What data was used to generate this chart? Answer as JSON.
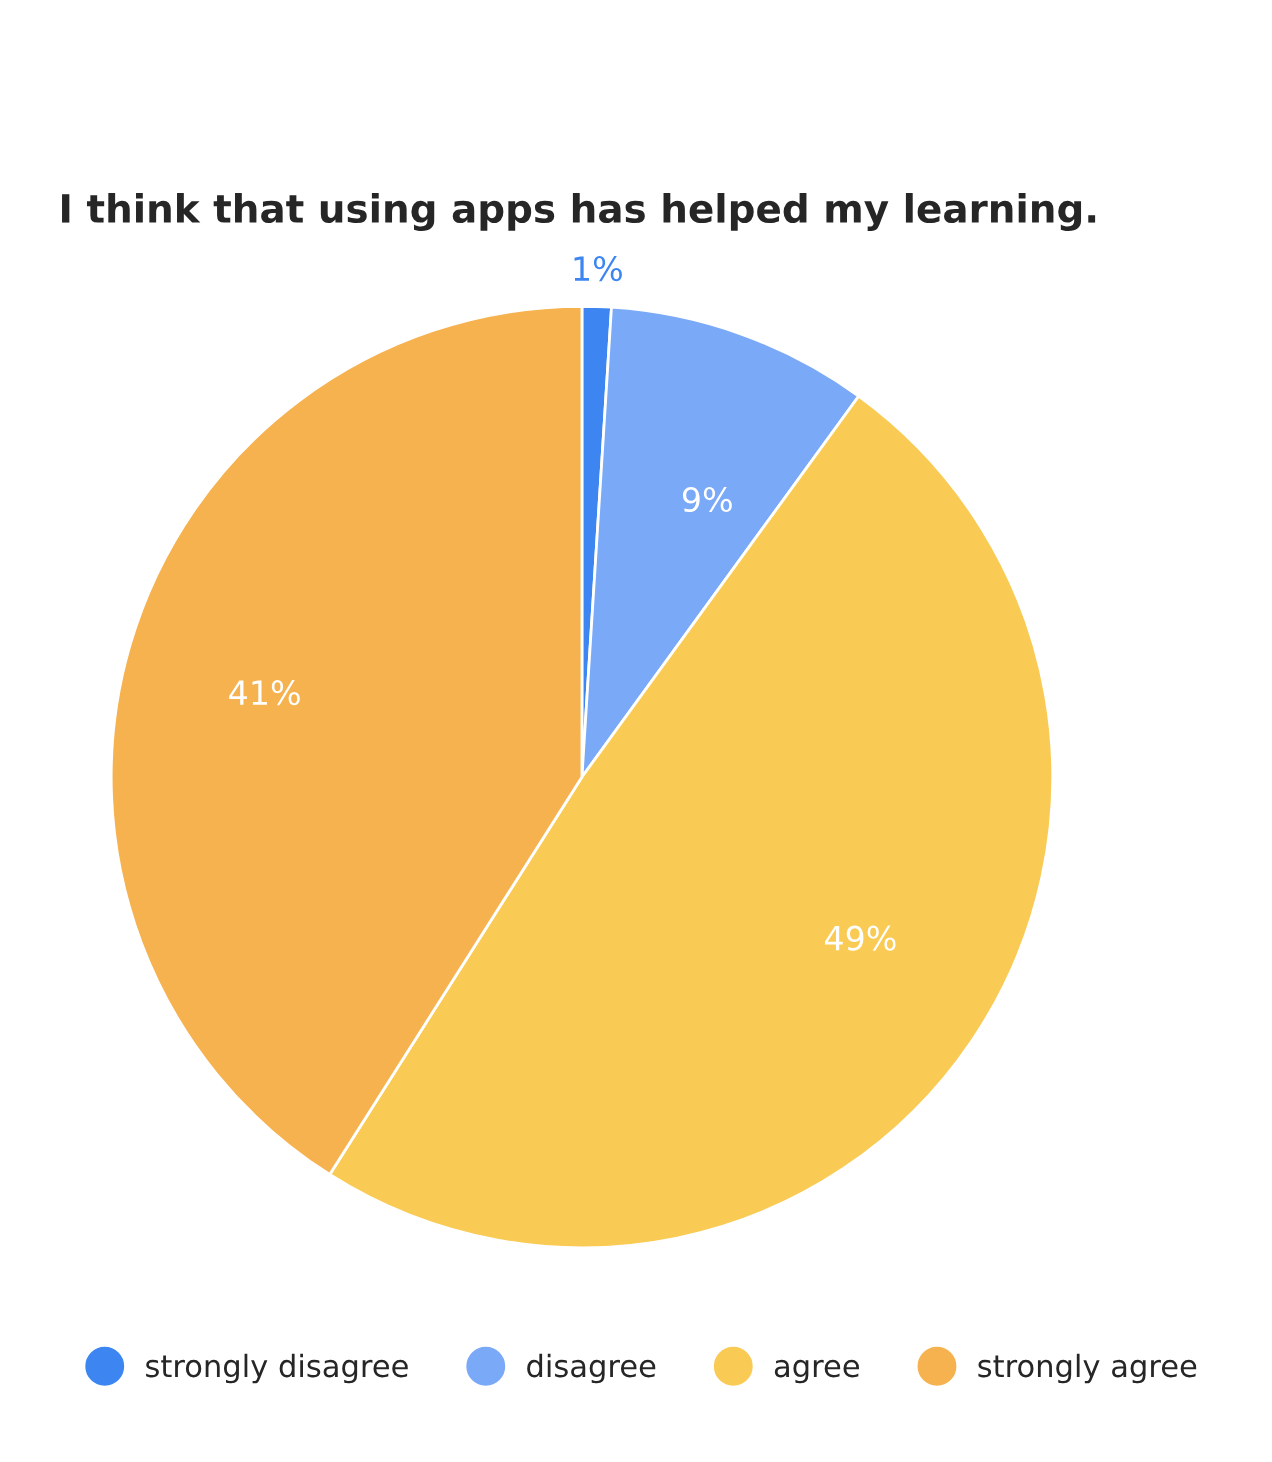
{
  "chart_data": {
    "type": "pie",
    "title": "I think that using apps has helped my learning.",
    "categories": [
      "strongly disagree",
      "disagree",
      "agree",
      "strongly agree"
    ],
    "values": [
      1,
      9,
      49,
      41
    ],
    "value_labels": [
      "1%",
      "9%",
      "49%",
      "41%"
    ],
    "colors": [
      "#3d86f2",
      "#7aa9f8",
      "#f9cb55",
      "#f6b24f"
    ],
    "legend": "bottom"
  }
}
